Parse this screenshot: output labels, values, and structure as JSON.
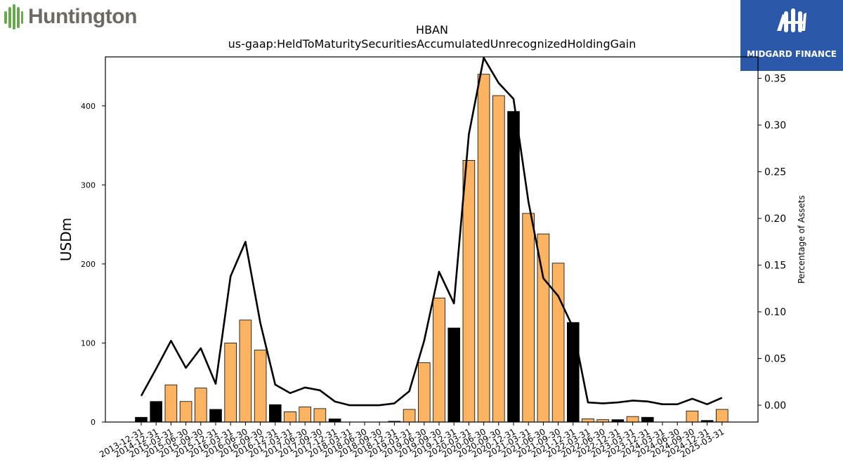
{
  "logos": {
    "left": "Huntington",
    "right": "MIDGARD FINANCE"
  },
  "chart_data": {
    "type": "bar",
    "title": "HBAN",
    "subtitle": "us-gaap:HeldToMaturitySecuritiesAccumulatedUnrecognizedHoldingGain",
    "ylabel": "USDm",
    "y2label": "Percentage of Assets",
    "ylim": [
      0,
      462
    ],
    "y2lim": [
      -0.018,
      0.373
    ],
    "yticks": [
      0,
      100,
      200,
      300,
      400
    ],
    "y2ticks": [
      0.0,
      0.05,
      0.1,
      0.15,
      0.2,
      0.25,
      0.3,
      0.35
    ],
    "y2tick_labels": [
      "0.00",
      "0.05",
      "0.10",
      "0.15",
      "0.20",
      "0.25",
      "0.30",
      "0.35"
    ],
    "categories": [
      "2013-12-31",
      "2014-12-31",
      "2015-03-31",
      "2015-06-30",
      "2015-09-30",
      "2015-12-31",
      "2016-03-31",
      "2016-06-30",
      "2016-09-30",
      "2016-12-31",
      "2017-03-31",
      "2017-06-30",
      "2017-09-30",
      "2017-12-31",
      "2018-03-31",
      "2018-06-30",
      "2018-09-30",
      "2018-12-31",
      "2019-03-31",
      "2019-06-30",
      "2019-09-30",
      "2019-12-31",
      "2020-03-31",
      "2020-06-30",
      "2020-09-30",
      "2020-12-31",
      "2021-03-31",
      "2021-06-30",
      "2021-09-30",
      "2021-12-31",
      "2022-03-31",
      "2022-06-30",
      "2022-12-31",
      "2023-03-31",
      "2023-12-31",
      "2024-03-31",
      "2024-06-30",
      "2024-09-30",
      "2024-12-31",
      "2025-03-31"
    ],
    "series": [
      {
        "kind": "bar",
        "axis": "left",
        "values": [
          6,
          26,
          47,
          26,
          43,
          16,
          100,
          129,
          91,
          22,
          13,
          19,
          17,
          4,
          0,
          0,
          0,
          1,
          16,
          75,
          157,
          119,
          331,
          440,
          413,
          393,
          264,
          238,
          201,
          126,
          4,
          3,
          3,
          7,
          6,
          0,
          0,
          14,
          2,
          16
        ],
        "colors": [
          "#000000",
          "#000000",
          "#fdb462",
          "#fdb462",
          "#fdb462",
          "#000000",
          "#fdb462",
          "#fdb462",
          "#fdb462",
          "#000000",
          "#fdb462",
          "#fdb462",
          "#fdb462",
          "#000000",
          "#fdb462",
          "#fdb462",
          "#fdb462",
          "#000000",
          "#fdb462",
          "#fdb462",
          "#fdb462",
          "#000000",
          "#fdb462",
          "#fdb462",
          "#fdb462",
          "#000000",
          "#fdb462",
          "#fdb462",
          "#fdb462",
          "#000000",
          "#fdb462",
          "#fdb462",
          "#000000",
          "#fdb462",
          "#000000",
          "#fdb462",
          "#fdb462",
          "#fdb462",
          "#000000",
          "#fdb462"
        ]
      },
      {
        "kind": "line",
        "axis": "right",
        "color": "#000000",
        "values": [
          0.01,
          0.039,
          0.069,
          0.04,
          0.061,
          0.023,
          0.138,
          0.175,
          0.088,
          0.022,
          0.013,
          0.019,
          0.016,
          0.004,
          0.0,
          0.0,
          0.0,
          0.002,
          0.015,
          0.069,
          0.143,
          0.109,
          0.29,
          0.372,
          0.345,
          0.328,
          0.218,
          0.136,
          0.117,
          0.083,
          0.003,
          0.002,
          0.003,
          0.005,
          0.004,
          0.001,
          0.001,
          0.007,
          0.001,
          0.008
        ]
      }
    ],
    "colors": {
      "bar_primary": "#fdb462",
      "bar_secondary": "#000000",
      "line": "#000000",
      "logo_bg": "#2b58a9",
      "logo_green": "#6aa84f"
    },
    "grid": false,
    "legend": "none"
  }
}
